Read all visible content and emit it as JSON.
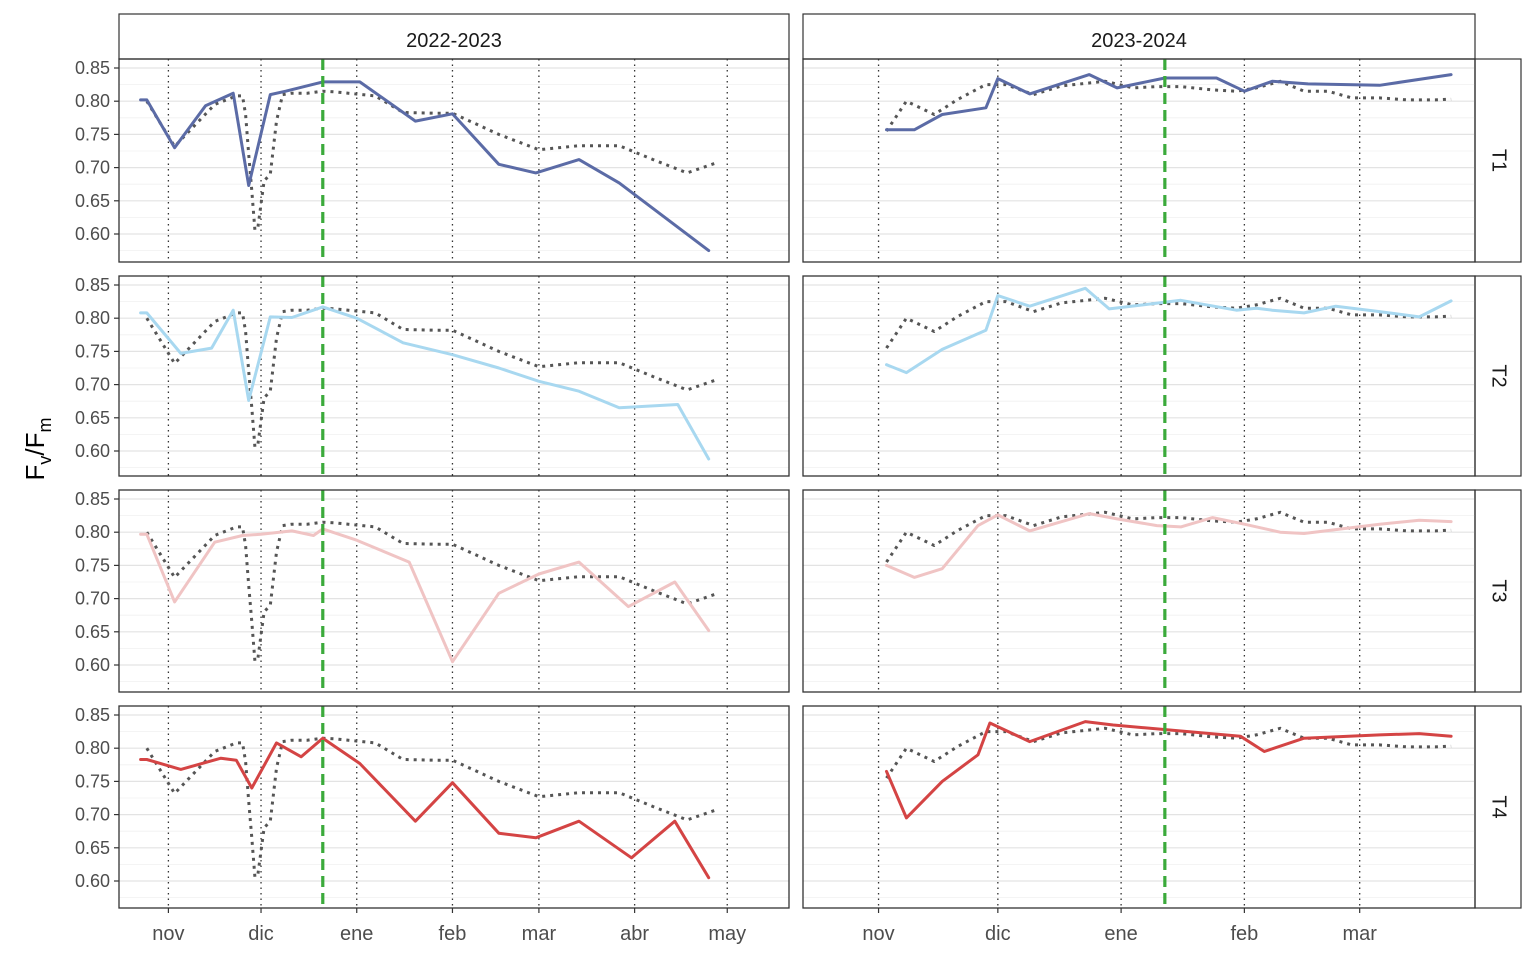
{
  "chart_data": {
    "type": "line",
    "ylabel": {
      "main_1": "F",
      "sub_1": "v",
      "slash": "/",
      "main_2": "F",
      "sub_2": "m"
    },
    "ylim": [
      0.55,
      0.86
    ],
    "yticks": [
      "0.60",
      "0.65",
      "0.70",
      "0.75",
      "0.80",
      "0.85"
    ],
    "columns": [
      {
        "title": "2022-2023",
        "x_range": [
          "2022-10-16",
          "2023-05-21"
        ],
        "month_ticks": [
          {
            "date": "2022-11-01",
            "label": "nov"
          },
          {
            "date": "2022-12-01",
            "label": "dic"
          },
          {
            "date": "2023-01-01",
            "label": "ene"
          },
          {
            "date": "2023-02-01",
            "label": "feb"
          },
          {
            "date": "2023-03-01",
            "label": "mar"
          },
          {
            "date": "2023-04-01",
            "label": "abr"
          },
          {
            "date": "2023-05-01",
            "label": "may"
          }
        ],
        "marker_date": "2022-12-21",
        "reference": {
          "x": [
            "2022-10-25",
            "2022-11-03",
            "2022-11-16",
            "2022-11-23",
            "2022-11-25",
            "2022-11-26",
            "2022-11-27",
            "2022-11-28",
            "2022-11-29",
            "2022-11-30",
            "2022-12-02",
            "2022-12-04",
            "2022-12-06",
            "2022-12-08",
            "2022-12-11",
            "2022-12-16",
            "2022-12-21",
            "2022-12-25",
            "2023-01-07",
            "2023-01-16",
            "2023-01-26",
            "2023-02-01",
            "2023-02-16",
            "2023-03-01",
            "2023-03-14",
            "2023-03-27",
            "2023-04-07",
            "2023-04-18",
            "2023-04-28"
          ],
          "y": [
            0.8,
            0.732,
            0.795,
            0.808,
            0.808,
            0.78,
            0.72,
            0.665,
            0.606,
            0.61,
            0.68,
            0.69,
            0.77,
            0.81,
            0.812,
            0.812,
            0.815,
            0.814,
            0.808,
            0.783,
            0.782,
            0.782,
            0.75,
            0.727,
            0.733,
            0.733,
            0.712,
            0.692,
            0.708
          ]
        }
      },
      {
        "title": "2023-2024",
        "x_range": [
          "2023-10-13",
          "2024-03-30"
        ],
        "month_ticks": [
          {
            "date": "2023-11-01",
            "label": "nov"
          },
          {
            "date": "2023-12-01",
            "label": "dic"
          },
          {
            "date": "2024-01-01",
            "label": "ene"
          },
          {
            "date": "2024-02-01",
            "label": "feb"
          },
          {
            "date": "2024-03-01",
            "label": "mar"
          }
        ],
        "marker_date": "2024-01-12",
        "reference": {
          "x": [
            "2023-11-03",
            "2023-11-08",
            "2023-11-15",
            "2023-11-21",
            "2023-11-28",
            "2023-12-03",
            "2023-12-10",
            "2023-12-17",
            "2023-12-28",
            "2024-01-04",
            "2024-01-10",
            "2024-01-16",
            "2024-01-24",
            "2024-01-30",
            "2024-02-04",
            "2024-02-10",
            "2024-02-16",
            "2024-02-22",
            "2024-02-28",
            "2024-03-06",
            "2024-03-13",
            "2024-03-20",
            "2024-03-24"
          ],
          "y": [
            0.755,
            0.8,
            0.78,
            0.803,
            0.825,
            0.825,
            0.81,
            0.823,
            0.83,
            0.82,
            0.822,
            0.822,
            0.817,
            0.815,
            0.82,
            0.83,
            0.815,
            0.815,
            0.805,
            0.805,
            0.802,
            0.802,
            0.803
          ]
        }
      }
    ],
    "rows": [
      {
        "label": "T1",
        "color": "#5B6BA6",
        "series": [
          {
            "x": [
              "2022-10-23",
              "2022-10-25",
              "2022-11-03",
              "2022-11-13",
              "2022-11-22",
              "2022-11-27",
              "2022-12-04",
              "2022-12-09",
              "2022-12-21",
              "2023-01-02",
              "2023-01-20",
              "2023-02-01",
              "2023-02-16",
              "2023-02-28",
              "2023-03-14",
              "2023-03-27",
              "2023-04-25"
            ],
            "y": [
              0.802,
              0.802,
              0.73,
              0.793,
              0.812,
              0.673,
              0.81,
              0.815,
              0.829,
              0.829,
              0.77,
              0.781,
              0.705,
              0.692,
              0.712,
              0.677,
              0.575
            ]
          },
          {
            "x": [
              "2023-11-03",
              "2023-11-10",
              "2023-11-17",
              "2023-11-28",
              "2023-12-01",
              "2023-12-09",
              "2023-12-24",
              "2023-12-31",
              "2024-01-12",
              "2024-01-25",
              "2024-02-01",
              "2024-02-08",
              "2024-02-17",
              "2024-03-06",
              "2024-03-24"
            ],
            "y": [
              0.757,
              0.757,
              0.78,
              0.79,
              0.834,
              0.811,
              0.84,
              0.82,
              0.835,
              0.835,
              0.815,
              0.83,
              0.826,
              0.824,
              0.84
            ]
          }
        ]
      },
      {
        "label": "T2",
        "color": "#A8D8F0",
        "series": [
          {
            "x": [
              "2022-10-23",
              "2022-10-25",
              "2022-11-05",
              "2022-11-15",
              "2022-11-22",
              "2022-11-27",
              "2022-12-04",
              "2022-12-11",
              "2022-12-21",
              "2023-01-01",
              "2023-01-16",
              "2023-02-01",
              "2023-02-16",
              "2023-03-01",
              "2023-03-14",
              "2023-03-27",
              "2023-04-15",
              "2023-04-25"
            ],
            "y": [
              0.808,
              0.808,
              0.747,
              0.755,
              0.812,
              0.676,
              0.802,
              0.801,
              0.817,
              0.8,
              0.763,
              0.745,
              0.725,
              0.705,
              0.69,
              0.665,
              0.67,
              0.588
            ]
          },
          {
            "x": [
              "2023-11-03",
              "2023-11-08",
              "2023-11-17",
              "2023-11-28",
              "2023-12-01",
              "2023-12-09",
              "2023-12-23",
              "2023-12-29",
              "2024-01-16",
              "2024-01-30",
              "2024-02-04",
              "2024-02-08",
              "2024-02-16",
              "2024-02-24",
              "2024-03-06",
              "2024-03-16",
              "2024-03-24"
            ],
            "y": [
              0.73,
              0.718,
              0.753,
              0.782,
              0.834,
              0.818,
              0.845,
              0.814,
              0.827,
              0.812,
              0.815,
              0.812,
              0.808,
              0.818,
              0.81,
              0.802,
              0.826
            ]
          }
        ]
      },
      {
        "label": "T3",
        "color": "#F0C4C4",
        "series": [
          {
            "x": [
              "2022-10-23",
              "2022-10-25",
              "2022-11-03",
              "2022-11-16",
              "2022-11-25",
              "2022-12-01",
              "2022-12-11",
              "2022-12-18",
              "2022-12-21",
              "2023-01-01",
              "2023-01-18",
              "2023-02-01",
              "2023-02-16",
              "2023-03-01",
              "2023-03-14",
              "2023-03-30",
              "2023-04-14",
              "2023-04-25"
            ],
            "y": [
              0.797,
              0.797,
              0.695,
              0.785,
              0.795,
              0.797,
              0.802,
              0.795,
              0.805,
              0.788,
              0.755,
              0.605,
              0.708,
              0.737,
              0.755,
              0.688,
              0.725,
              0.652
            ]
          },
          {
            "x": [
              "2023-11-03",
              "2023-11-10",
              "2023-11-17",
              "2023-11-26",
              "2023-12-01",
              "2023-12-09",
              "2023-12-24",
              "2023-12-31",
              "2024-01-10",
              "2024-01-16",
              "2024-01-24",
              "2024-02-01",
              "2024-02-10",
              "2024-02-16",
              "2024-03-06",
              "2024-03-16",
              "2024-03-24"
            ],
            "y": [
              0.75,
              0.732,
              0.745,
              0.81,
              0.826,
              0.802,
              0.828,
              0.82,
              0.81,
              0.808,
              0.822,
              0.812,
              0.8,
              0.798,
              0.812,
              0.818,
              0.816
            ]
          }
        ]
      },
      {
        "label": "T4",
        "color": "#D44444",
        "series": [
          {
            "x": [
              "2022-10-23",
              "2022-10-25",
              "2022-11-05",
              "2022-11-18",
              "2022-11-23",
              "2022-11-28",
              "2022-12-06",
              "2022-12-14",
              "2022-12-21",
              "2023-01-02",
              "2023-01-20",
              "2023-02-01",
              "2023-02-16",
              "2023-02-28",
              "2023-03-14",
              "2023-03-31",
              "2023-04-14",
              "2023-04-25"
            ],
            "y": [
              0.783,
              0.783,
              0.768,
              0.785,
              0.782,
              0.74,
              0.808,
              0.787,
              0.815,
              0.777,
              0.69,
              0.748,
              0.672,
              0.665,
              0.69,
              0.635,
              0.69,
              0.605
            ]
          },
          {
            "x": [
              "2023-11-03",
              "2023-11-08",
              "2023-11-17",
              "2023-11-26",
              "2023-11-29",
              "2023-12-09",
              "2023-12-23",
              "2023-12-30",
              "2024-01-31",
              "2024-02-06",
              "2024-02-16",
              "2024-03-06",
              "2024-03-16",
              "2024-03-24"
            ],
            "y": [
              0.765,
              0.695,
              0.75,
              0.79,
              0.838,
              0.81,
              0.84,
              0.835,
              0.818,
              0.795,
              0.815,
              0.82,
              0.822,
              0.818
            ]
          }
        ]
      }
    ]
  }
}
